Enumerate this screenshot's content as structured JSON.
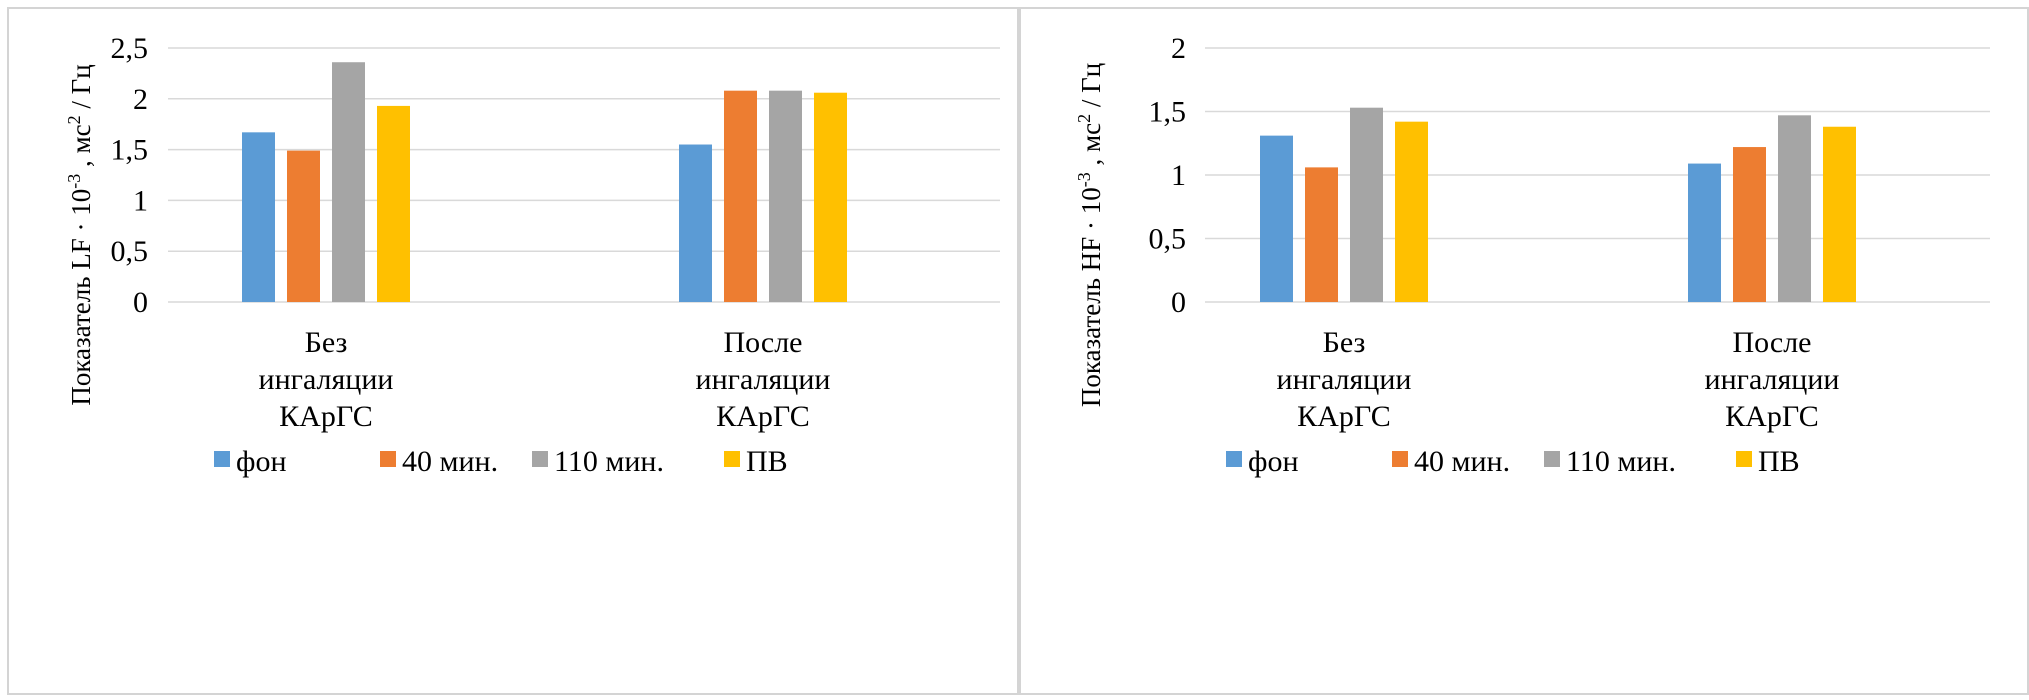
{
  "chart_data": [
    {
      "type": "bar",
      "categories": [
        [
          "Без",
          "ингаляции",
          "КАрГС"
        ],
        [
          "После",
          "ингаляции",
          "КАрГС"
        ]
      ],
      "series": [
        {
          "name": "фон",
          "color": "#5b9bd5",
          "values": [
            1.67,
            1.55
          ]
        },
        {
          "name": "40 мин.",
          "color": "#ed7d31",
          "values": [
            1.49,
            2.08
          ]
        },
        {
          "name": "110 мин.",
          "color": "#a5a5a5",
          "values": [
            2.36,
            2.08
          ]
        },
        {
          "name": "ПВ",
          "color": "#ffc000",
          "values": [
            1.93,
            2.06
          ]
        }
      ],
      "ylabel": {
        "main": "Показатель LF · 10",
        "exp": "-3",
        "mid": " ,  мс",
        "exp2": "2",
        "tail": " / Гц"
      },
      "ylim": [
        0,
        2.5
      ],
      "yticks": [
        0,
        0.5,
        1,
        1.5,
        2,
        2.5
      ],
      "yticklabels": [
        "0",
        "0,5",
        "1",
        "1,5",
        "2",
        "2,5"
      ],
      "grid": true,
      "legend": "bottom"
    },
    {
      "type": "bar",
      "categories": [
        [
          "Без",
          "ингаляции",
          "КАрГС"
        ],
        [
          "После",
          "ингаляции",
          "КАрГС"
        ]
      ],
      "series": [
        {
          "name": "фон",
          "color": "#5b9bd5",
          "values": [
            1.31,
            1.09
          ]
        },
        {
          "name": "40 мин.",
          "color": "#ed7d31",
          "values": [
            1.06,
            1.22
          ]
        },
        {
          "name": "110 мин.",
          "color": "#a5a5a5",
          "values": [
            1.53,
            1.47
          ]
        },
        {
          "name": "ПВ",
          "color": "#ffc000",
          "values": [
            1.42,
            1.38
          ]
        }
      ],
      "ylabel": {
        "main": "Показатель HF · 10",
        "exp": "-3",
        "mid": " ,   мс",
        "exp2": "2",
        "tail": " / Гц"
      },
      "ylim": [
        0,
        2
      ],
      "yticks": [
        0,
        0.5,
        1,
        1.5,
        2
      ],
      "yticklabels": [
        "0",
        "0,5",
        "1",
        "1,5",
        "2"
      ],
      "grid": true,
      "legend": "bottom"
    }
  ]
}
